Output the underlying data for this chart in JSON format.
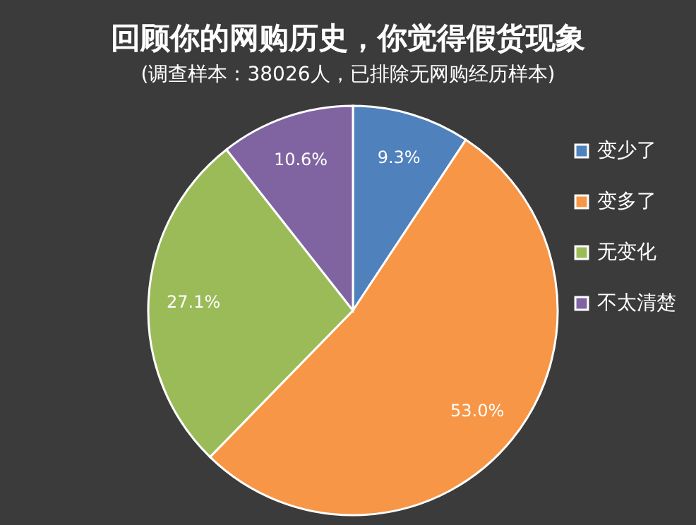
{
  "chart_data": {
    "type": "pie",
    "title": "回顾你的网购历史，你觉得假货现象",
    "subtitle": "(调查样本：38026人，已排除无网购经历样本)",
    "categories": [
      "变少了",
      "变多了",
      "无变化",
      "不太清楚"
    ],
    "values": [
      9.3,
      53.0,
      27.1,
      10.6
    ],
    "colors": [
      "#4f81bd",
      "#f79646",
      "#9bbb59",
      "#8064a2"
    ],
    "value_labels": [
      "9.3%",
      "53.0%",
      "27.1%",
      "10.6%"
    ],
    "legend": "right"
  }
}
